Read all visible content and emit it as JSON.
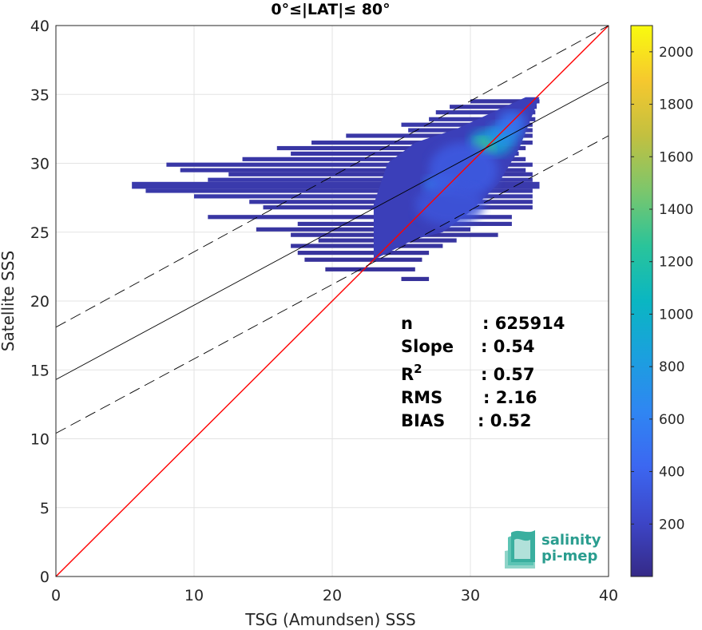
{
  "chart_data": {
    "type": "heatmap",
    "title": "0°≤|LAT|≤ 80°",
    "xlabel": "TSG (Amundsen) SSS",
    "ylabel": "Satellite SSS",
    "xlim": [
      0,
      40
    ],
    "ylim": [
      0,
      40
    ],
    "xticks": [
      "0",
      "10",
      "20",
      "30",
      "40"
    ],
    "yticks": [
      "0",
      "5",
      "10",
      "15",
      "20",
      "25",
      "30",
      "35",
      "40"
    ],
    "grid": true,
    "colorbar": {
      "colormap": "parula",
      "range": [
        0,
        2100
      ],
      "ticks": [
        "200",
        "400",
        "600",
        "800",
        "1000",
        "1200",
        "1400",
        "1600",
        "1800",
        "2000"
      ]
    },
    "lines": [
      {
        "name": "1:1",
        "color": "#ff0000",
        "style": "solid",
        "x": [
          0,
          40
        ],
        "y": [
          0,
          40
        ]
      },
      {
        "name": "fit",
        "color": "#000000",
        "style": "solid",
        "x": [
          0,
          40
        ],
        "y": [
          14.3,
          35.9
        ]
      },
      {
        "name": "fit+2rms",
        "color": "#000000",
        "style": "dashed",
        "x": [
          0,
          40
        ],
        "y": [
          18.1,
          40.0
        ]
      },
      {
        "name": "fit-2rms",
        "color": "#000000",
        "style": "dashed",
        "x": [
          0,
          40
        ],
        "y": [
          10.4,
          32.0
        ]
      }
    ],
    "density_bands": [
      {
        "x0": 5.5,
        "x1": 35.0,
        "y": 28.4,
        "h": 0.5,
        "level": 120
      },
      {
        "x0": 6.5,
        "x1": 34.5,
        "y": 28.0,
        "h": 0.3,
        "level": 110
      },
      {
        "x0": 8.0,
        "x1": 34.5,
        "y": 29.9,
        "h": 0.3,
        "level": 100
      },
      {
        "x0": 9.0,
        "x1": 34.0,
        "y": 29.5,
        "h": 0.3,
        "level": 100
      },
      {
        "x0": 10.0,
        "x1": 34.5,
        "y": 27.6,
        "h": 0.3,
        "level": 110
      },
      {
        "x0": 11.0,
        "x1": 34.5,
        "y": 28.8,
        "h": 0.3,
        "level": 120
      },
      {
        "x0": 12.5,
        "x1": 34.5,
        "y": 29.2,
        "h": 0.3,
        "level": 100
      },
      {
        "x0": 13.5,
        "x1": 34.0,
        "y": 30.3,
        "h": 0.3,
        "level": 100
      },
      {
        "x0": 14.0,
        "x1": 34.5,
        "y": 27.2,
        "h": 0.3,
        "level": 100
      },
      {
        "x0": 11.0,
        "x1": 33.0,
        "y": 26.1,
        "h": 0.3,
        "level": 90
      },
      {
        "x0": 16.0,
        "x1": 34.0,
        "y": 31.1,
        "h": 0.3,
        "level": 90
      },
      {
        "x0": 15.0,
        "x1": 34.5,
        "y": 26.8,
        "h": 0.3,
        "level": 90
      },
      {
        "x0": 17.0,
        "x1": 33.5,
        "y": 30.7,
        "h": 0.3,
        "level": 100
      },
      {
        "x0": 18.5,
        "x1": 34.5,
        "y": 31.5,
        "h": 0.3,
        "level": 90
      },
      {
        "x0": 17.5,
        "x1": 33.0,
        "y": 25.6,
        "h": 0.3,
        "level": 90
      },
      {
        "x0": 14.5,
        "x1": 30.0,
        "y": 25.2,
        "h": 0.3,
        "level": 80
      },
      {
        "x0": 17.0,
        "x1": 32.0,
        "y": 24.8,
        "h": 0.3,
        "level": 80
      },
      {
        "x0": 21.0,
        "x1": 34.5,
        "y": 32.0,
        "h": 0.3,
        "level": 100
      },
      {
        "x0": 19.0,
        "x1": 29.0,
        "y": 24.4,
        "h": 0.3,
        "level": 80
      },
      {
        "x0": 25.5,
        "x1": 34.5,
        "y": 32.4,
        "h": 0.3,
        "level": 110
      },
      {
        "x0": 17.0,
        "x1": 28.0,
        "y": 24.0,
        "h": 0.3,
        "level": 80
      },
      {
        "x0": 25.0,
        "x1": 34.5,
        "y": 32.8,
        "h": 0.3,
        "level": 110
      },
      {
        "x0": 17.5,
        "x1": 27.0,
        "y": 23.5,
        "h": 0.3,
        "level": 70
      },
      {
        "x0": 27.0,
        "x1": 34.7,
        "y": 33.2,
        "h": 0.3,
        "level": 110
      },
      {
        "x0": 18.0,
        "x1": 26.5,
        "y": 23.0,
        "h": 0.3,
        "level": 60
      },
      {
        "x0": 27.5,
        "x1": 34.7,
        "y": 33.7,
        "h": 0.3,
        "level": 110
      },
      {
        "x0": 19.5,
        "x1": 26.0,
        "y": 22.3,
        "h": 0.3,
        "level": 60
      },
      {
        "x0": 28.5,
        "x1": 34.8,
        "y": 34.1,
        "h": 0.3,
        "level": 100
      },
      {
        "x0": 25.0,
        "x1": 27.0,
        "y": 21.6,
        "h": 0.3,
        "level": 60
      },
      {
        "x0": 30.0,
        "x1": 35.0,
        "y": 34.5,
        "h": 0.3,
        "level": 90
      }
    ],
    "density_hotspots": [
      {
        "x": 31.5,
        "y": 31.5,
        "rx": 1.6,
        "ry": 1.0,
        "level": 900
      },
      {
        "x": 31.0,
        "y": 31.3,
        "rx": 0.8,
        "ry": 0.6,
        "level": 1300
      },
      {
        "x": 32.5,
        "y": 32.2,
        "rx": 1.2,
        "ry": 0.8,
        "level": 700
      },
      {
        "x": 27.8,
        "y": 28.4,
        "rx": 1.2,
        "ry": 0.7,
        "level": 600
      },
      {
        "x": 29.5,
        "y": 29.5,
        "rx": 2.5,
        "ry": 2.0,
        "level": 350
      },
      {
        "x": 33.0,
        "y": 33.0,
        "rx": 1.0,
        "ry": 0.8,
        "level": 500
      },
      {
        "x": 28.5,
        "y": 27.0,
        "rx": 2.5,
        "ry": 1.5,
        "level": 300
      }
    ],
    "stats": [
      {
        "label": "n",
        "value": ": 625914"
      },
      {
        "label": "Slope",
        "value": ": 0.54"
      },
      {
        "label": "R",
        "sup": "2",
        "value": ": 0.57"
      },
      {
        "label": "RMS",
        "value": ": 2.16"
      },
      {
        "label": "BIAS",
        "value": ": 0.52"
      }
    ]
  },
  "logo": {
    "line1": "salinity",
    "line2": "pi-mep"
  }
}
